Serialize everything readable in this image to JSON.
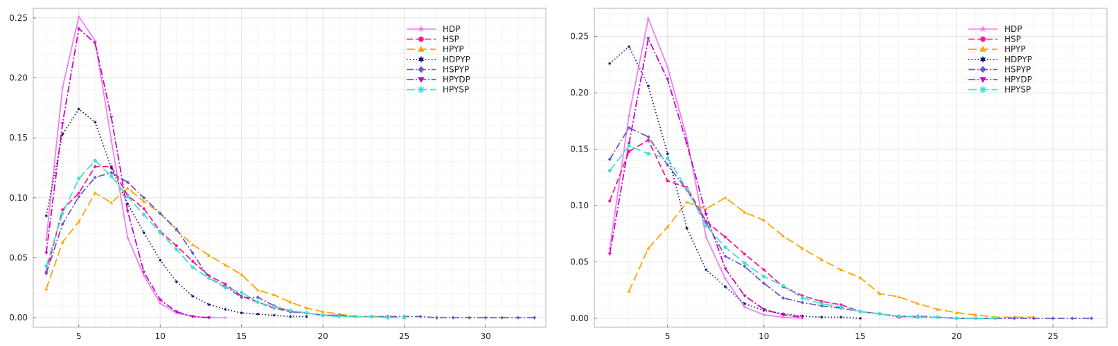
{
  "chart_data": [
    {
      "type": "line",
      "title": "",
      "xlabel": "",
      "ylabel": "",
      "xlim": [
        2.2,
        33.7
      ],
      "ylim": [
        -0.008,
        0.258
      ],
      "xticks": [
        5,
        10,
        15,
        20,
        25,
        30
      ],
      "yticks": [
        0,
        0.05,
        0.1,
        0.15,
        0.2,
        0.25
      ],
      "ytick_labels": [
        "0.00",
        "0.05",
        "0.10",
        "0.15",
        "0.20",
        "0.25"
      ],
      "grid": true,
      "legend_position": "top-right",
      "series": [
        {
          "name": "HDP",
          "color": "#ee82ee",
          "dash": "solid",
          "marker": "star",
          "x": [
            3,
            4,
            5,
            6,
            7,
            8,
            9,
            10,
            11,
            12,
            13,
            14
          ],
          "y": [
            0.065,
            0.192,
            0.251,
            0.231,
            0.148,
            0.067,
            0.035,
            0.012,
            0.004,
            0.001,
            0.0,
            0.0
          ]
        },
        {
          "name": "HSP",
          "color": "#ff1493",
          "dash": "dash",
          "marker": "circle",
          "x": [
            3,
            4,
            5,
            6,
            7,
            8,
            9,
            10,
            11,
            12,
            13,
            14,
            15,
            16,
            17,
            18,
            19,
            20,
            21,
            22,
            23,
            24
          ],
          "y": [
            0.038,
            0.09,
            0.104,
            0.126,
            0.126,
            0.102,
            0.091,
            0.072,
            0.06,
            0.047,
            0.035,
            0.028,
            0.018,
            0.013,
            0.008,
            0.005,
            0.004,
            0.002,
            0.002,
            0.001,
            0.001,
            0.001
          ]
        },
        {
          "name": "HPYP",
          "color": "#ffa500",
          "dash": "longdash",
          "marker": "triangle-up",
          "x": [
            3,
            4,
            5,
            6,
            7,
            8,
            9,
            10,
            11,
            12,
            13,
            14,
            15,
            16,
            17,
            18,
            19,
            20,
            21,
            22,
            23,
            24
          ],
          "y": [
            0.024,
            0.063,
            0.08,
            0.104,
            0.096,
            0.108,
            0.097,
            0.087,
            0.073,
            0.061,
            0.052,
            0.044,
            0.036,
            0.023,
            0.019,
            0.013,
            0.008,
            0.005,
            0.003,
            0.001,
            0.001,
            0.001
          ]
        },
        {
          "name": "HDPYP",
          "color": "#191970",
          "dash": "dot",
          "marker": "star6",
          "x": [
            3,
            4,
            5,
            6,
            7,
            8,
            9,
            10,
            11,
            12,
            13,
            14,
            15,
            16,
            17,
            18,
            19
          ],
          "y": [
            0.085,
            0.153,
            0.174,
            0.163,
            0.125,
            0.095,
            0.071,
            0.048,
            0.03,
            0.018,
            0.011,
            0.007,
            0.004,
            0.003,
            0.002,
            0.001,
            0.001
          ]
        },
        {
          "name": "HSPYP",
          "color": "#6a5acd",
          "dash": "dashdot",
          "marker": "diamond",
          "x": [
            3,
            4,
            5,
            6,
            7,
            8,
            9,
            10,
            11,
            12,
            13,
            14,
            15,
            16,
            17,
            18,
            19,
            20,
            21,
            22,
            23,
            24,
            25,
            26,
            27,
            28,
            29,
            30,
            31,
            32,
            33
          ],
          "y": [
            0.037,
            0.078,
            0.101,
            0.117,
            0.121,
            0.113,
            0.1,
            0.087,
            0.074,
            0.054,
            0.033,
            0.026,
            0.017,
            0.017,
            0.01,
            0.005,
            0.004,
            0.002,
            0.002,
            0.001,
            0.001,
            0.001,
            0.001,
            0.001,
            0.0,
            0.0,
            0.0,
            0.0,
            0.0,
            0.0,
            0.0
          ]
        },
        {
          "name": "HPYDP",
          "color": "#cc00cc",
          "dash": "dashdot",
          "marker": "triangle-down",
          "x": [
            3,
            4,
            5,
            6,
            7,
            8,
            9,
            10,
            11,
            12,
            13
          ],
          "y": [
            0.054,
            0.162,
            0.241,
            0.229,
            0.167,
            0.089,
            0.038,
            0.015,
            0.005,
            0.001,
            0.0
          ]
        },
        {
          "name": "HPYSP",
          "color": "#40e0d0",
          "dash": "longdash",
          "marker": "asterisk",
          "x": [
            3,
            4,
            5,
            6,
            7,
            8,
            9,
            10,
            11,
            12,
            13,
            14,
            15,
            16,
            17,
            18,
            19,
            20,
            21,
            22,
            23,
            24,
            25
          ],
          "y": [
            0.043,
            0.087,
            0.116,
            0.131,
            0.118,
            0.101,
            0.086,
            0.071,
            0.057,
            0.042,
            0.033,
            0.025,
            0.021,
            0.013,
            0.009,
            0.006,
            0.004,
            0.002,
            0.001,
            0.001,
            0.001,
            0.0,
            0.0
          ]
        }
      ]
    },
    {
      "type": "line",
      "title": "",
      "xlabel": "",
      "ylabel": "",
      "xlim": [
        1.2,
        27.8
      ],
      "ylim": [
        -0.008,
        0.275
      ],
      "xticks": [
        5,
        10,
        15,
        20,
        25
      ],
      "yticks": [
        0,
        0.05,
        0.1,
        0.15,
        0.2,
        0.25
      ],
      "ytick_labels": [
        "0.00",
        "0.05",
        "0.10",
        "0.15",
        "0.20",
        "0.25"
      ],
      "grid": true,
      "legend_position": "top-right",
      "series": [
        {
          "name": "HDP",
          "color": "#ee82ee",
          "dash": "solid",
          "marker": "star",
          "x": [
            2,
            3,
            4,
            5,
            6,
            7,
            8,
            9,
            10,
            11,
            12
          ],
          "y": [
            0.062,
            0.18,
            0.266,
            0.223,
            0.16,
            0.072,
            0.035,
            0.01,
            0.003,
            0.001,
            0.0
          ]
        },
        {
          "name": "HSP",
          "color": "#ff1493",
          "dash": "dash",
          "marker": "circle",
          "x": [
            2,
            3,
            4,
            5,
            6,
            7,
            8,
            9,
            10,
            11,
            12,
            13,
            14,
            15,
            16,
            17,
            18,
            19,
            20,
            21,
            22
          ],
          "y": [
            0.104,
            0.148,
            0.158,
            0.122,
            0.116,
            0.086,
            0.072,
            0.057,
            0.043,
            0.028,
            0.02,
            0.015,
            0.012,
            0.006,
            0.004,
            0.002,
            0.001,
            0.001,
            0.0,
            0.0,
            0.0
          ]
        },
        {
          "name": "HPYP",
          "color": "#ffa500",
          "dash": "longdash",
          "marker": "triangle-up",
          "x": [
            3,
            4,
            5,
            6,
            7,
            8,
            9,
            10,
            11,
            12,
            13,
            14,
            15,
            16,
            17,
            18,
            19,
            20,
            21,
            22,
            23,
            24
          ],
          "y": [
            0.024,
            0.062,
            0.081,
            0.103,
            0.097,
            0.107,
            0.094,
            0.087,
            0.073,
            0.062,
            0.052,
            0.043,
            0.036,
            0.022,
            0.019,
            0.013,
            0.008,
            0.005,
            0.003,
            0.001,
            0.001,
            0.001
          ]
        },
        {
          "name": "HDPYP",
          "color": "#191970",
          "dash": "dot",
          "marker": "star6",
          "x": [
            2,
            3,
            4,
            5,
            6,
            7,
            8,
            9,
            10,
            11,
            12,
            13,
            14,
            15
          ],
          "y": [
            0.226,
            0.241,
            0.206,
            0.146,
            0.08,
            0.043,
            0.028,
            0.013,
            0.007,
            0.004,
            0.002,
            0.001,
            0.001,
            0.0
          ]
        },
        {
          "name": "HSPYP",
          "color": "#6a5acd",
          "dash": "dashdot",
          "marker": "diamond",
          "x": [
            2,
            3,
            4,
            5,
            6,
            7,
            8,
            9,
            10,
            11,
            12,
            13,
            14,
            15,
            16,
            17,
            18,
            19,
            20,
            21,
            22,
            23,
            24,
            25,
            26,
            27
          ],
          "y": [
            0.141,
            0.169,
            0.161,
            0.136,
            0.114,
            0.085,
            0.055,
            0.046,
            0.031,
            0.018,
            0.014,
            0.011,
            0.009,
            0.006,
            0.004,
            0.001,
            0.002,
            0.001,
            0.0,
            0.0,
            0.0,
            0.0,
            0.0,
            0.0,
            0.0,
            0.0
          ]
        },
        {
          "name": "HPYDP",
          "color": "#cc00cc",
          "dash": "dashdot",
          "marker": "triangle-down",
          "x": [
            2,
            3,
            4,
            5,
            6,
            7,
            8,
            9,
            10,
            11,
            12
          ],
          "y": [
            0.057,
            0.155,
            0.248,
            0.212,
            0.155,
            0.092,
            0.044,
            0.02,
            0.008,
            0.003,
            0.001
          ]
        },
        {
          "name": "HPYSP",
          "color": "#40e0d0",
          "dash": "longdash",
          "marker": "asterisk",
          "x": [
            2,
            3,
            4,
            5,
            6,
            7,
            8,
            9,
            10,
            11,
            12,
            13,
            14,
            15,
            16,
            17,
            18,
            19,
            20,
            21,
            22
          ],
          "y": [
            0.131,
            0.153,
            0.146,
            0.142,
            0.115,
            0.082,
            0.063,
            0.049,
            0.037,
            0.029,
            0.018,
            0.013,
            0.01,
            0.006,
            0.004,
            0.002,
            0.001,
            0.001,
            0.0,
            0.0,
            0.0
          ]
        }
      ]
    }
  ]
}
